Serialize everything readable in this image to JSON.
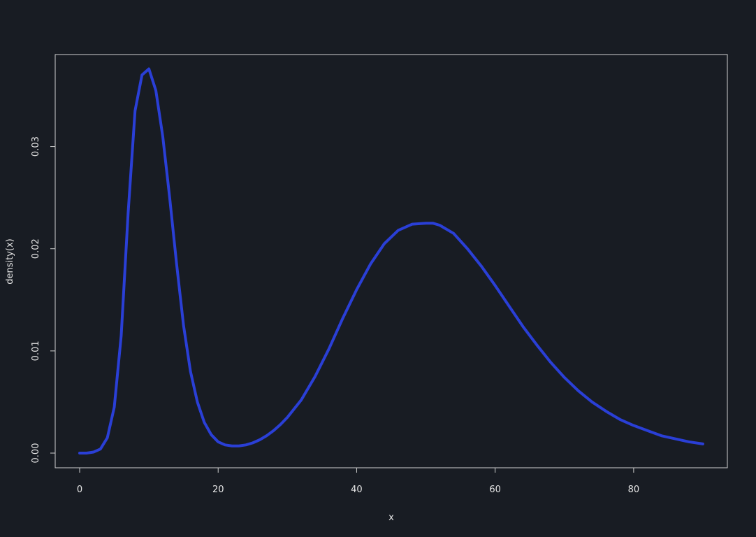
{
  "chart_data": {
    "type": "line",
    "title": "",
    "xlabel": "x",
    "ylabel": "density(x)",
    "xlim": [
      0,
      90
    ],
    "ylim": [
      0,
      0.0375
    ],
    "x_ticks": [
      0,
      20,
      40,
      60,
      80
    ],
    "y_ticks": [
      0.0,
      0.01,
      0.02,
      0.03
    ],
    "x_tick_labels": [
      "0",
      "20",
      "40",
      "60",
      "80"
    ],
    "y_tick_labels": [
      "0.00",
      "0.01",
      "0.02",
      "0.03"
    ],
    "grid": false,
    "legend": "none",
    "series": [
      {
        "color": "#2a3fd6",
        "x": [
          0,
          1,
          2,
          3,
          4,
          5,
          6,
          7,
          8,
          9,
          10,
          11,
          12,
          13,
          14,
          15,
          16,
          17,
          18,
          19,
          20,
          21,
          22,
          23,
          24,
          25,
          26,
          27,
          28,
          29,
          30,
          32,
          34,
          36,
          38,
          40,
          42,
          44,
          46,
          48,
          50,
          51,
          52,
          54,
          56,
          58,
          60,
          62,
          64,
          66,
          68,
          70,
          72,
          74,
          76,
          78,
          80,
          82,
          84,
          86,
          88,
          90
        ],
        "y": [
          0.0,
          0.0,
          0.0001,
          0.0004,
          0.0015,
          0.0045,
          0.0115,
          0.0235,
          0.0335,
          0.037,
          0.0376,
          0.0355,
          0.031,
          0.025,
          0.0185,
          0.0125,
          0.008,
          0.005,
          0.003,
          0.0018,
          0.0011,
          0.0008,
          0.0007,
          0.0007,
          0.0008,
          0.001,
          0.0013,
          0.0017,
          0.0022,
          0.0028,
          0.0035,
          0.0052,
          0.0075,
          0.0102,
          0.0132,
          0.016,
          0.0185,
          0.0205,
          0.0218,
          0.0224,
          0.0225,
          0.0225,
          0.0223,
          0.0215,
          0.02,
          0.0183,
          0.0164,
          0.0144,
          0.0124,
          0.0106,
          0.0089,
          0.0074,
          0.0061,
          0.005,
          0.0041,
          0.0033,
          0.0027,
          0.0022,
          0.0017,
          0.0014,
          0.0011,
          0.0009
        ]
      }
    ]
  }
}
